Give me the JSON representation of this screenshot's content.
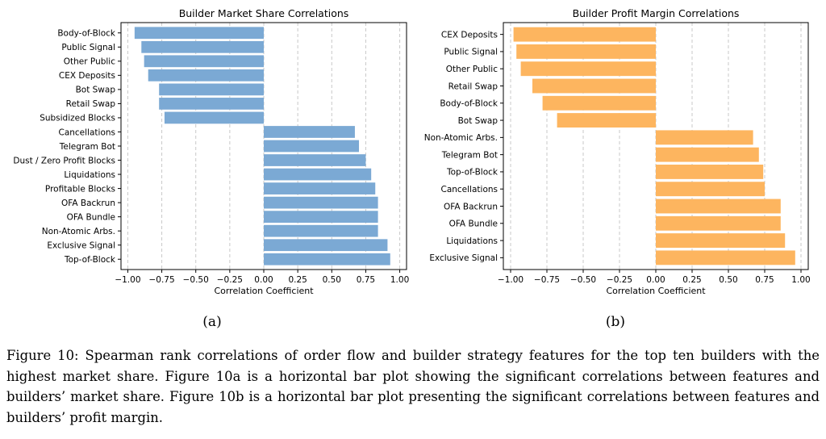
{
  "chart_data": [
    {
      "type": "bar",
      "orientation": "horizontal",
      "title": "Builder Market Share Correlations",
      "xlabel": "Correlation Coefficient",
      "xlim": [
        -1.05,
        1.05
      ],
      "xticks": [
        -1.0,
        -0.75,
        -0.5,
        -0.25,
        0.0,
        0.25,
        0.5,
        0.75,
        1.0
      ],
      "xtick_labels": [
        "−1.00",
        "−0.75",
        "−0.50",
        "−0.25",
        "0.00",
        "0.25",
        "0.50",
        "0.75",
        "1.00"
      ],
      "grid": "vertical dashed",
      "color": "#7ba9d4",
      "categories": [
        "Body-of-Block",
        "Public Signal",
        "Other Public",
        "CEX Deposits",
        "Bot Swap",
        "Retail Swap",
        "Subsidized Blocks",
        "Cancellations",
        "Telegram Bot",
        "Dust / Zero Profit Blocks",
        "Liquidations",
        "Profitable Blocks",
        "OFA Backrun",
        "OFA Bundle",
        "Non-Atomic Arbs.",
        "Exclusive Signal",
        "Top-of-Block"
      ],
      "values": [
        -0.95,
        -0.9,
        -0.88,
        -0.85,
        -0.77,
        -0.77,
        -0.73,
        0.67,
        0.7,
        0.75,
        0.79,
        0.82,
        0.84,
        0.84,
        0.84,
        0.91,
        0.93
      ],
      "sublabel": "(a)"
    },
    {
      "type": "bar",
      "orientation": "horizontal",
      "title": "Builder Profit Margin Correlations",
      "xlabel": "Correlation Coefficient",
      "xlim": [
        -1.05,
        1.05
      ],
      "xticks": [
        -1.0,
        -0.75,
        -0.5,
        -0.25,
        0.0,
        0.25,
        0.5,
        0.75,
        1.0
      ],
      "xtick_labels": [
        "−1.00",
        "−0.75",
        "−0.50",
        "−0.25",
        "0.00",
        "0.25",
        "0.50",
        "0.75",
        "1.00"
      ],
      "grid": "vertical dashed",
      "color": "#fdb55f",
      "categories": [
        "CEX Deposits",
        "Public Signal",
        "Other Public",
        "Retail Swap",
        "Body-of-Block",
        "Bot Swap",
        "Non-Atomic Arbs.",
        "Telegram Bot",
        "Top-of-Block",
        "Cancellations",
        "OFA Backrun",
        "OFA Bundle",
        "Liquidations",
        "Exclusive Signal"
      ],
      "values": [
        -0.98,
        -0.96,
        -0.93,
        -0.85,
        -0.78,
        -0.68,
        0.67,
        0.71,
        0.74,
        0.75,
        0.86,
        0.86,
        0.89,
        0.96
      ],
      "sublabel": "(b)"
    }
  ],
  "caption": "Figure 10: Spearman rank correlations of order flow and builder strategy features for the top ten builders with the highest market share. Figure 10a is a horizontal bar plot showing the significant correlations between features and builders’ market share. Figure 10b is a horizontal bar plot presenting the significant correlations between features and builders’ profit margin."
}
